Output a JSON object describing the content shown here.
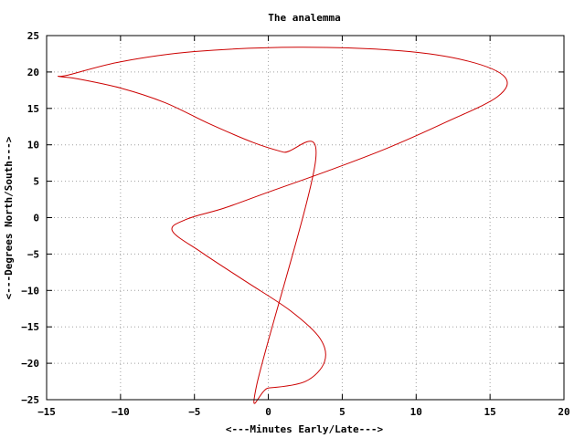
{
  "chart_data": {
    "type": "line",
    "title": "The analemma",
    "xlabel": "<---Minutes Early/Late--->",
    "ylabel": "<---Degrees North/South--->",
    "xlim": [
      -15,
      20
    ],
    "ylim": [
      -25,
      25
    ],
    "xticks": [
      -15,
      -10,
      -5,
      0,
      5,
      10,
      15,
      20
    ],
    "yticks": [
      -25,
      -20,
      -15,
      -10,
      -5,
      0,
      5,
      10,
      15,
      20,
      25
    ],
    "grid": true,
    "line_color": "#cc0000",
    "series": [
      {
        "name": "analemma",
        "x": [
          3.2,
          1.0,
          -1.0,
          -4.0,
          -7.0,
          -10.0,
          -13.0,
          -14.2,
          -13.5,
          -10.0,
          -5.0,
          2.0,
          9.0,
          13.5,
          16.0,
          15.5,
          12.0,
          8.0,
          4.0,
          0.0,
          -3.0,
          -5.5,
          -6.5,
          -4.5,
          -1.5,
          1.5,
          3.5,
          3.8,
          2.5,
          0.0,
          -0.8
        ],
        "y": [
          7.9,
          9.0,
          10.3,
          12.9,
          15.8,
          17.8,
          19.1,
          19.4,
          19.6,
          21.4,
          22.8,
          23.4,
          22.9,
          21.5,
          19.3,
          16.6,
          13.1,
          9.5,
          6.4,
          3.5,
          1.3,
          -0.2,
          -1.8,
          -4.8,
          -8.8,
          -12.8,
          -16.6,
          -19.8,
          -22.5,
          -23.4,
          -23.1
        ]
      }
    ]
  }
}
